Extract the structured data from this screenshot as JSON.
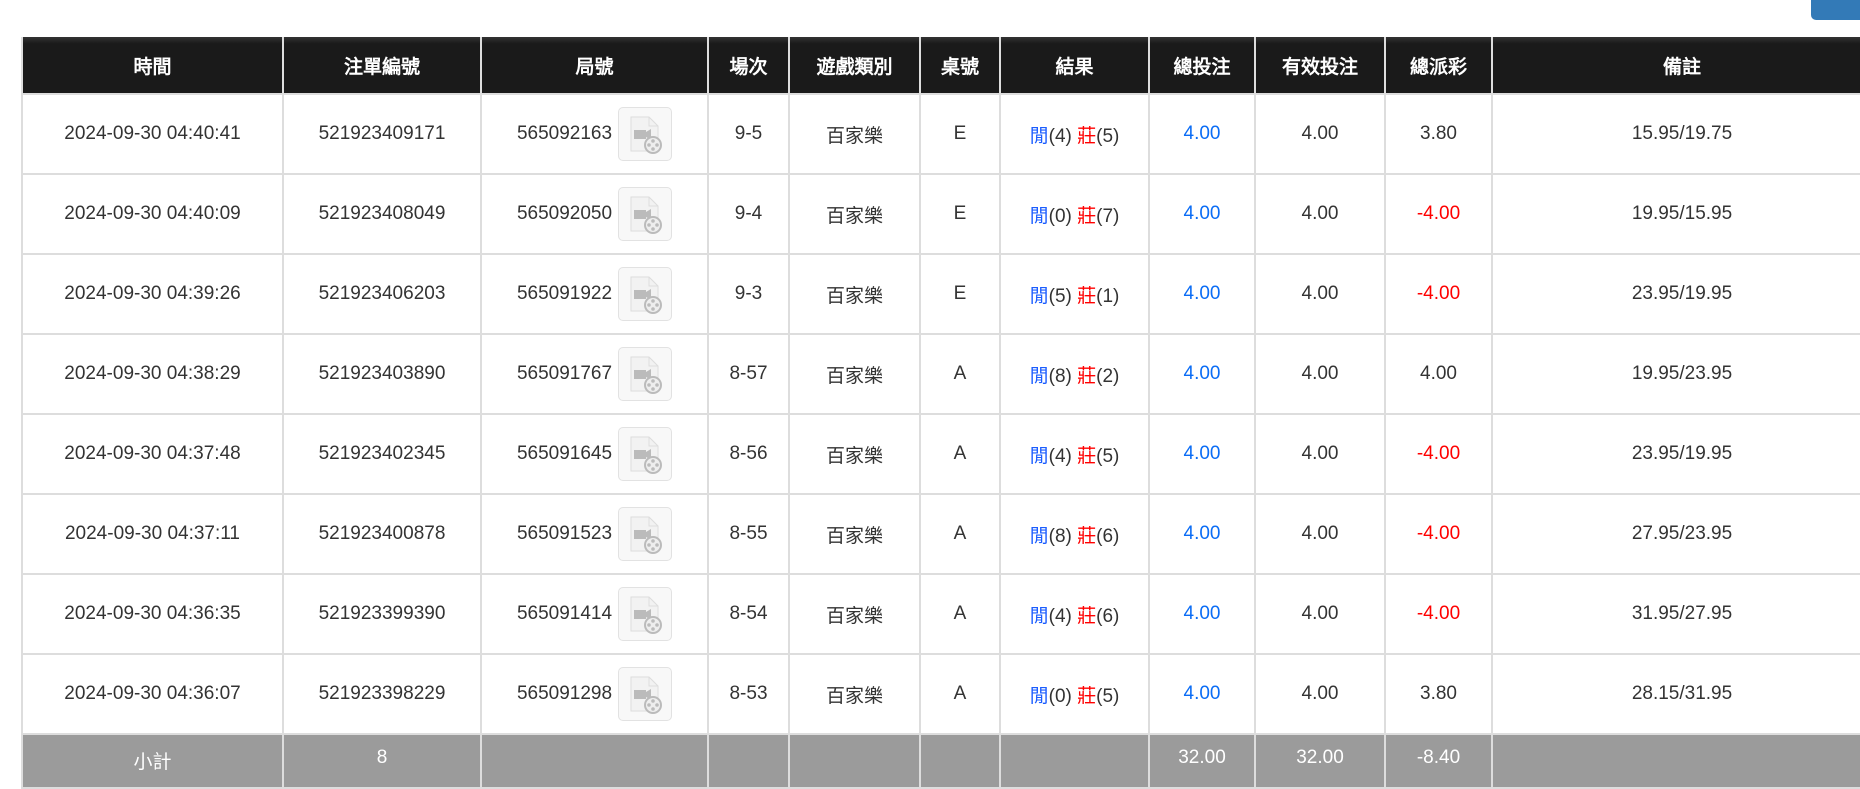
{
  "colors": {
    "header_bg": "#1a1a1a",
    "subtotal_bg": "#9b9b9b",
    "blue": "#0a6cf5",
    "red": "#ff0000",
    "button": "#337ab7"
  },
  "headers": [
    "時間",
    "注單編號",
    "局號",
    "場次",
    "遊戲類別",
    "桌號",
    "結果",
    "總投注",
    "有效投注",
    "總派彩",
    "備註"
  ],
  "rows": [
    {
      "time": "2024-09-30 04:40:41",
      "bet_id": "521923409171",
      "round": "565092163",
      "shoe": "9-5",
      "game": "百家樂",
      "table": "E",
      "player": "閒",
      "player_pts": "(4)",
      "banker": "莊",
      "banker_pts": "(5)",
      "total": "4.00",
      "valid": "4.00",
      "payout": "3.80",
      "payout_neg": false,
      "note": "15.95/19.75"
    },
    {
      "time": "2024-09-30 04:40:09",
      "bet_id": "521923408049",
      "round": "565092050",
      "shoe": "9-4",
      "game": "百家樂",
      "table": "E",
      "player": "閒",
      "player_pts": "(0)",
      "banker": "莊",
      "banker_pts": "(7)",
      "total": "4.00",
      "valid": "4.00",
      "payout": "-4.00",
      "payout_neg": true,
      "note": "19.95/15.95"
    },
    {
      "time": "2024-09-30 04:39:26",
      "bet_id": "521923406203",
      "round": "565091922",
      "shoe": "9-3",
      "game": "百家樂",
      "table": "E",
      "player": "閒",
      "player_pts": "(5)",
      "banker": "莊",
      "banker_pts": "(1)",
      "total": "4.00",
      "valid": "4.00",
      "payout": "-4.00",
      "payout_neg": true,
      "note": "23.95/19.95"
    },
    {
      "time": "2024-09-30 04:38:29",
      "bet_id": "521923403890",
      "round": "565091767",
      "shoe": "8-57",
      "game": "百家樂",
      "table": "A",
      "player": "閒",
      "player_pts": "(8)",
      "banker": "莊",
      "banker_pts": "(2)",
      "total": "4.00",
      "valid": "4.00",
      "payout": "4.00",
      "payout_neg": false,
      "note": "19.95/23.95"
    },
    {
      "time": "2024-09-30 04:37:48",
      "bet_id": "521923402345",
      "round": "565091645",
      "shoe": "8-56",
      "game": "百家樂",
      "table": "A",
      "player": "閒",
      "player_pts": "(4)",
      "banker": "莊",
      "banker_pts": "(5)",
      "total": "4.00",
      "valid": "4.00",
      "payout": "-4.00",
      "payout_neg": true,
      "note": "23.95/19.95"
    },
    {
      "time": "2024-09-30 04:37:11",
      "bet_id": "521923400878",
      "round": "565091523",
      "shoe": "8-55",
      "game": "百家樂",
      "table": "A",
      "player": "閒",
      "player_pts": "(8)",
      "banker": "莊",
      "banker_pts": "(6)",
      "total": "4.00",
      "valid": "4.00",
      "payout": "-4.00",
      "payout_neg": true,
      "note": "27.95/23.95"
    },
    {
      "time": "2024-09-30 04:36:35",
      "bet_id": "521923399390",
      "round": "565091414",
      "shoe": "8-54",
      "game": "百家樂",
      "table": "A",
      "player": "閒",
      "player_pts": "(4)",
      "banker": "莊",
      "banker_pts": "(6)",
      "total": "4.00",
      "valid": "4.00",
      "payout": "-4.00",
      "payout_neg": true,
      "note": "31.95/27.95"
    },
    {
      "time": "2024-09-30 04:36:07",
      "bet_id": "521923398229",
      "round": "565091298",
      "shoe": "8-53",
      "game": "百家樂",
      "table": "A",
      "player": "閒",
      "player_pts": "(0)",
      "banker": "莊",
      "banker_pts": "(5)",
      "total": "4.00",
      "valid": "4.00",
      "payout": "3.80",
      "payout_neg": false,
      "note": "28.15/31.95"
    }
  ],
  "subtotal": {
    "label": "小計",
    "count": "8",
    "total": "32.00",
    "valid": "32.00",
    "payout": "-8.40"
  },
  "icons": {
    "replay": "video-file-icon"
  }
}
